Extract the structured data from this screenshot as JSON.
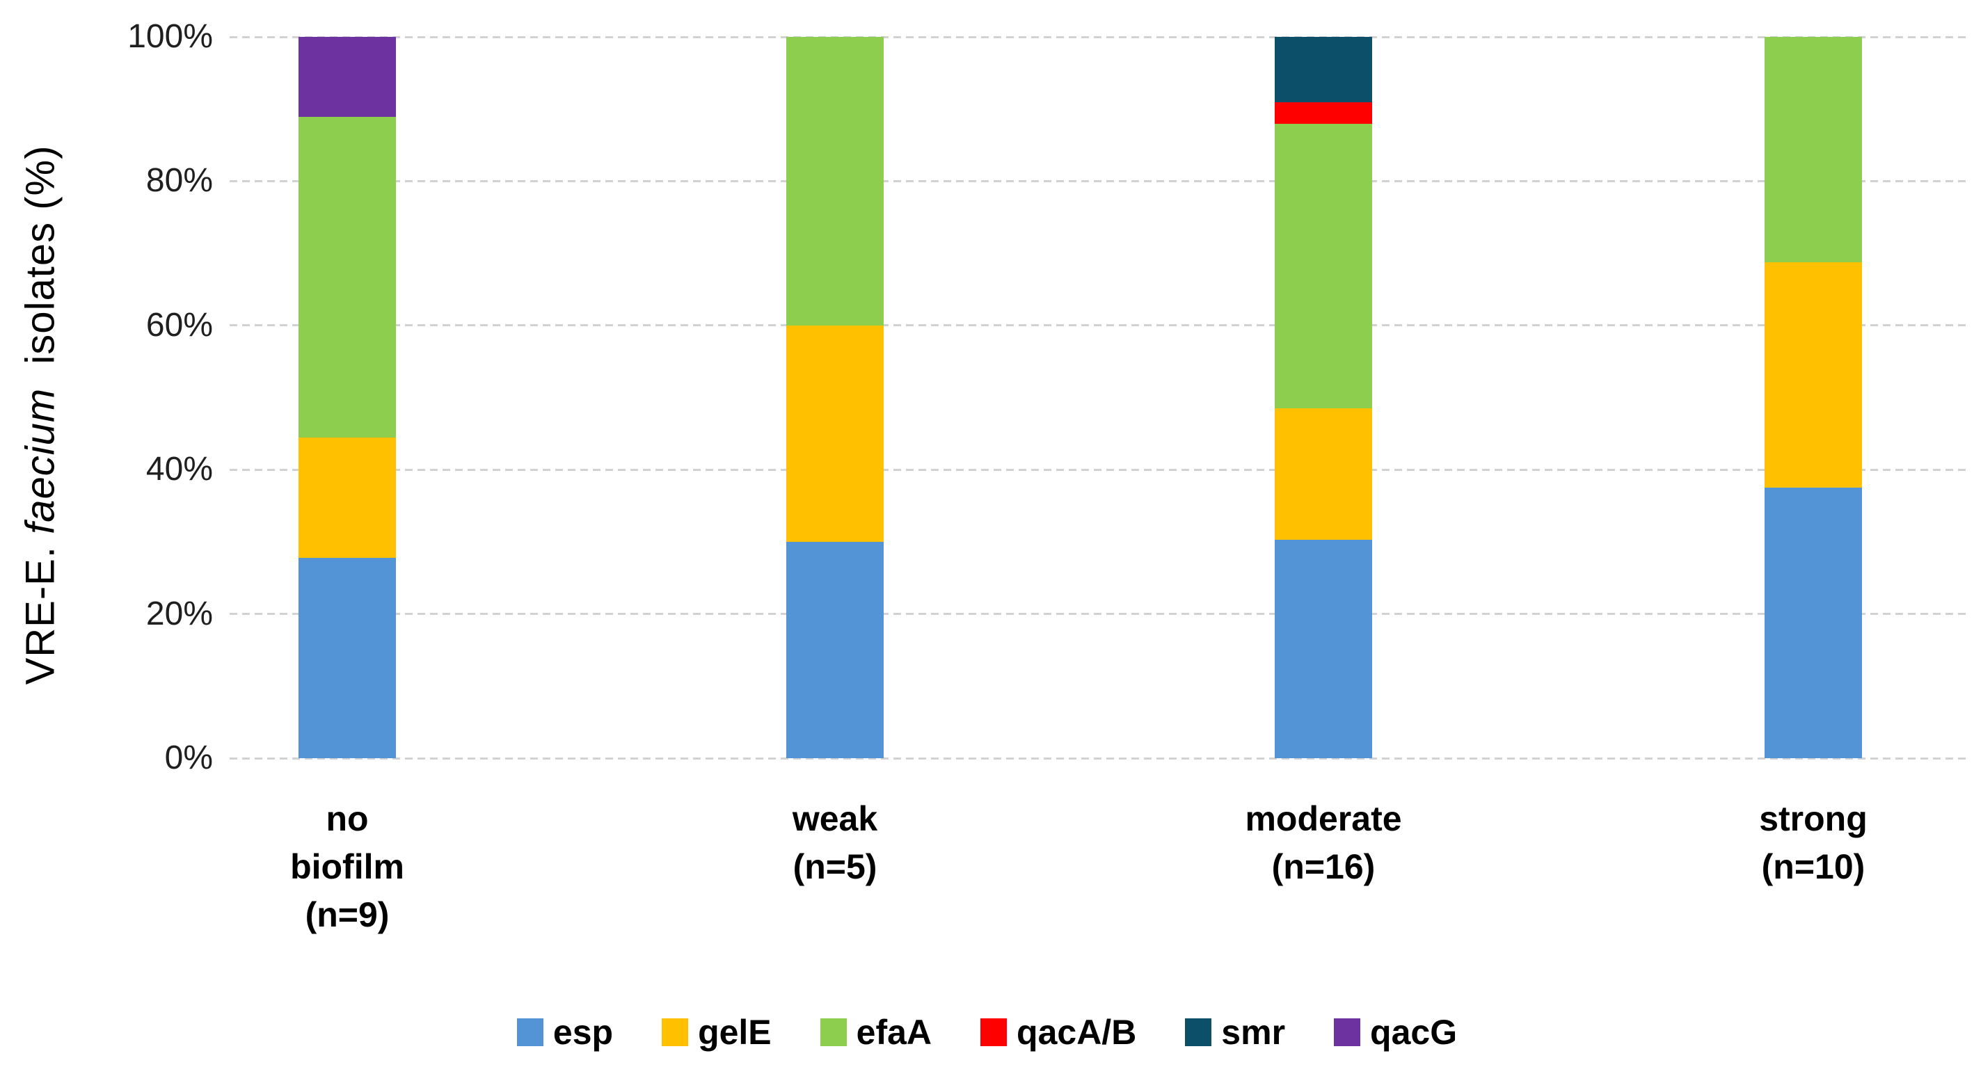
{
  "colors": {
    "background": "#FFFFFF",
    "gridline": "#D2D2D2",
    "text": "#000000"
  },
  "axis": {
    "y_title_prefix": "VRE-E.",
    "y_title_italic": "faecium",
    "y_title_suffix": "isolates  (%)"
  },
  "chart_data": {
    "type": "bar",
    "stacked": true,
    "normalized_to": "100%",
    "title": "",
    "xlabel": "",
    "ylabel": "VRE-E. faecium isolates (%)",
    "ylim": [
      0,
      100
    ],
    "grid": "horizontal-dashed",
    "legend_position": "bottom",
    "yticks": [
      {
        "value": 0,
        "label": "0%"
      },
      {
        "value": 20,
        "label": "20%"
      },
      {
        "value": 40,
        "label": "40%"
      },
      {
        "value": 60,
        "label": "60%"
      },
      {
        "value": 80,
        "label": "80%"
      },
      {
        "value": 100,
        "label": "100%"
      }
    ],
    "categories": [
      {
        "key": "no-biofilm",
        "label": "no biofilm (n=9)",
        "label_lines": [
          "no",
          "biofilm",
          "(n=9)"
        ],
        "n": 9
      },
      {
        "key": "weak",
        "label": "weak (n=5)",
        "label_lines": [
          "weak",
          "(n=5)"
        ],
        "n": 5
      },
      {
        "key": "moderate",
        "label": "moderate (n=16)",
        "label_lines": [
          "moderate",
          "(n=16)"
        ],
        "n": 16
      },
      {
        "key": "strong",
        "label": "strong (n=10)",
        "label_lines": [
          "strong",
          "(n=10)"
        ],
        "n": 10
      }
    ],
    "series": [
      {
        "name": "esp",
        "color": "#5294D6",
        "values": [
          27.8,
          30.0,
          30.3,
          37.5
        ]
      },
      {
        "name": "gelE",
        "color": "#FFC000",
        "values": [
          16.7,
          30.0,
          18.2,
          31.25
        ]
      },
      {
        "name": "efaA",
        "color": "#8DCE4F",
        "values": [
          44.4,
          40.0,
          39.4,
          31.25
        ]
      },
      {
        "name": "qacA/B",
        "color": "#FF0000",
        "values": [
          0,
          0,
          3.0,
          0
        ]
      },
      {
        "name": "smr",
        "color": "#0B4F68",
        "values": [
          0,
          0,
          9.1,
          0
        ]
      },
      {
        "name": "qacG",
        "color": "#6E31A0",
        "values": [
          11.1,
          0,
          0,
          0
        ]
      }
    ]
  }
}
